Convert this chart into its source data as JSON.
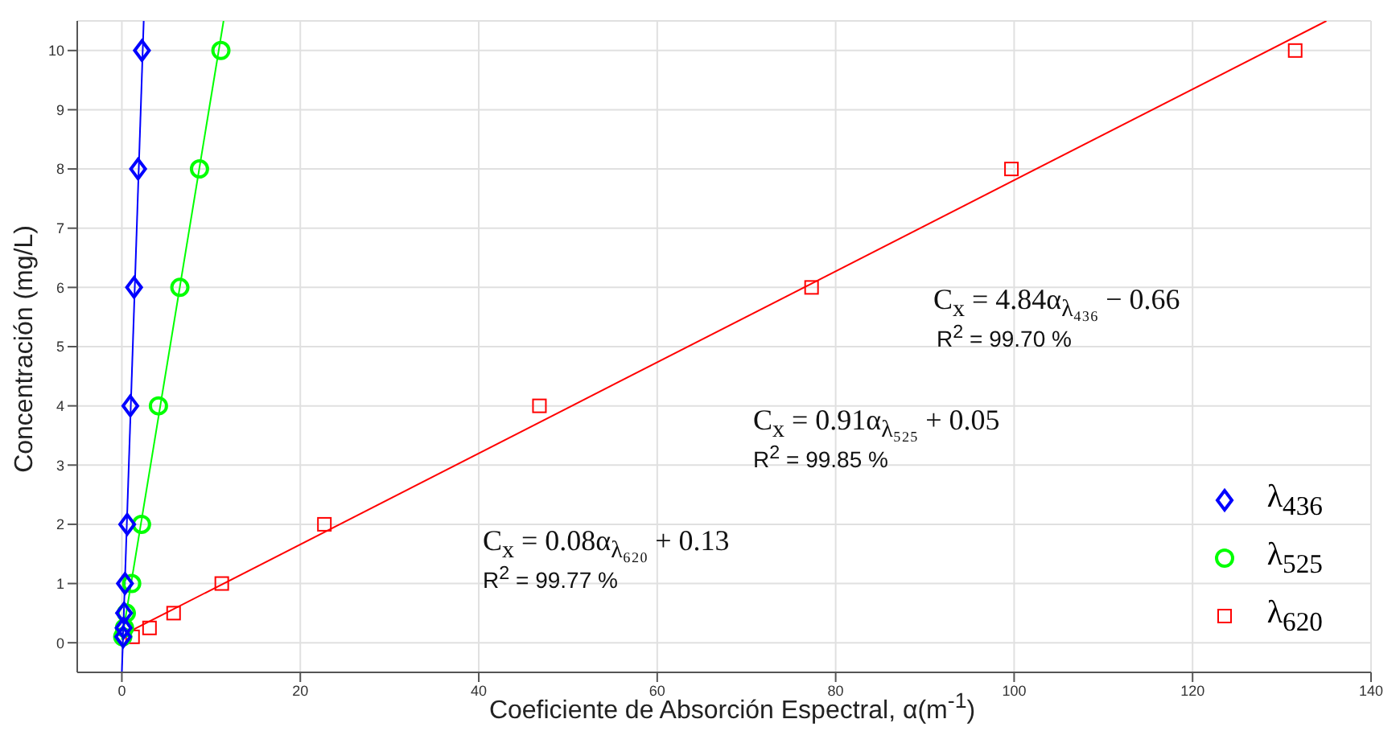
{
  "chart_data": {
    "type": "scatter",
    "xlabel": "Coeficiente de Absorción Espectral, α(m$^{-1}$)",
    "ylabel": "Concentración (mg/L)",
    "xlim": [
      -5,
      140
    ],
    "xticks": [
      0,
      20,
      40,
      60,
      80,
      100,
      120,
      140
    ],
    "ylim": [
      -0.5,
      10.5
    ],
    "yticks": [
      0,
      1,
      2,
      3,
      4,
      5,
      6,
      7,
      8,
      9,
      10
    ],
    "grid": true,
    "legend": "right",
    "series": [
      {
        "name": "λ$_{436}$",
        "marker": "diamond",
        "color": "#0000ff",
        "x": [
          0.15,
          0.2,
          0.25,
          0.35,
          0.6,
          0.95,
          1.37,
          1.82,
          2.25
        ],
        "values": [
          0.1,
          0.25,
          0.5,
          1,
          2,
          4,
          6,
          8,
          10
        ]
      },
      {
        "name": "λ$_{525}$",
        "marker": "circle",
        "color": "#00ff00",
        "x": [
          0.1,
          0.3,
          0.5,
          1.1,
          2.2,
          4.1,
          6.5,
          8.7,
          11.1
        ],
        "values": [
          0.1,
          0.25,
          0.5,
          1,
          2,
          4,
          6,
          8,
          10
        ]
      },
      {
        "name": "λ$_{620}$",
        "marker": "square",
        "color": "#ff0000",
        "x": [
          1.2,
          3.1,
          5.8,
          11.2,
          22.7,
          46.8,
          77.3,
          99.7,
          131.5
        ],
        "values": [
          0.1,
          0.25,
          0.5,
          1,
          2,
          4,
          6,
          8,
          10
        ]
      },
      {
        "type": "line",
        "marker": "none",
        "color": "#0000ff",
        "x": [
          0,
          2.45
        ],
        "values": [
          -0.5,
          10.5
        ]
      },
      {
        "type": "line",
        "marker": "none",
        "color": "#00ff00",
        "x": [
          0,
          11.4
        ],
        "values": [
          0.05,
          10.5
        ]
      },
      {
        "type": "line",
        "marker": "none",
        "color": "#ff0000",
        "x": [
          1,
          135
        ],
        "values": [
          0.2,
          10.5
        ]
      }
    ],
    "annotations": [
      "C$_{x}$ = 0.08α$_{λ₆₂₀}$ + 0.13",
      "R$^{2}$ = 99.77 %",
      "C$_{x}$ = 0.91α$_{λ₅₂₅}$ + 0.05",
      "R$^{2}$ = 99.85 %",
      "C$_{x}$ = 4.84α$_{λ₄₃₆}$ − 0.66",
      "R$^{2}$ = 99.70 %"
    ]
  }
}
